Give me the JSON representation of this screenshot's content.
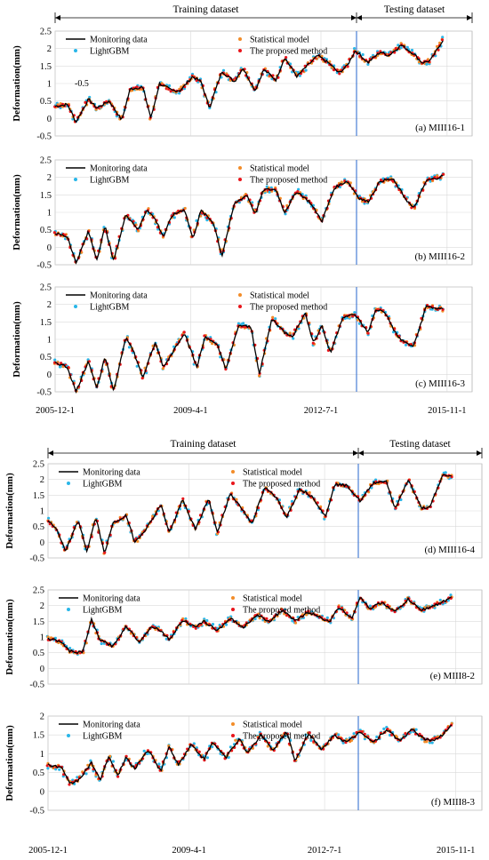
{
  "dataset_labels": {
    "training": "Training dataset",
    "testing": "Testing dataset"
  },
  "legend": {
    "monitoring": "Monitoring data",
    "statistical": "Statistical model",
    "lightgbm": "LightGBM",
    "proposed": "The proposed method"
  },
  "colors": {
    "monitoring": "#000000",
    "statistical": "#f28c28",
    "lightgbm": "#29b6e8",
    "proposed": "#e8151b",
    "split_line": "#4a7fd4",
    "grid": "#d9d9d9"
  },
  "ylabel": "Deformation(mm)",
  "x_tick_labels": [
    "2005-12-1",
    "2009-4-1",
    "2012-7-1",
    "2015-11-1"
  ],
  "chart_data": [
    {
      "type": "line",
      "label": "(a) MIII16-1",
      "ylim": [
        -0.5,
        2.5
      ],
      "yticks": [
        "-0.5",
        "0",
        "0.5",
        "1",
        "1.5",
        "2",
        "2.5"
      ],
      "stray_label": "-0.5",
      "monitoring_key_points": [
        [
          0,
          0.35
        ],
        [
          0.03,
          0.4
        ],
        [
          0.05,
          -0.1
        ],
        [
          0.08,
          0.55
        ],
        [
          0.1,
          0.3
        ],
        [
          0.13,
          0.5
        ],
        [
          0.16,
          -0.05
        ],
        [
          0.18,
          0.85
        ],
        [
          0.21,
          0.9
        ],
        [
          0.23,
          0.0
        ],
        [
          0.25,
          1.0
        ],
        [
          0.28,
          0.8
        ],
        [
          0.3,
          0.8
        ],
        [
          0.33,
          1.2
        ],
        [
          0.35,
          1.05
        ],
        [
          0.37,
          0.3
        ],
        [
          0.4,
          1.35
        ],
        [
          0.43,
          1.05
        ],
        [
          0.45,
          1.45
        ],
        [
          0.48,
          0.8
        ],
        [
          0.5,
          1.4
        ],
        [
          0.53,
          1.1
        ],
        [
          0.55,
          1.75
        ],
        [
          0.58,
          1.2
        ],
        [
          0.6,
          1.45
        ],
        [
          0.63,
          1.8
        ],
        [
          0.66,
          1.55
        ],
        [
          0.68,
          1.3
        ],
        [
          0.7,
          1.5
        ],
        [
          0.72,
          1.95
        ],
        [
          0.75,
          1.6
        ],
        [
          0.78,
          1.9
        ],
        [
          0.8,
          1.8
        ],
        [
          0.83,
          2.1
        ],
        [
          0.86,
          1.85
        ],
        [
          0.88,
          1.6
        ],
        [
          0.9,
          1.65
        ],
        [
          0.93,
          2.25
        ]
      ]
    },
    {
      "type": "line",
      "label": "(b) MIII16-2",
      "ylim": [
        -0.5,
        2.5
      ],
      "yticks": [
        "-0.5",
        "0",
        "0.5",
        "1",
        "1.5",
        "2",
        "2.5"
      ],
      "monitoring_key_points": [
        [
          0,
          0.4
        ],
        [
          0.03,
          0.3
        ],
        [
          0.05,
          -0.45
        ],
        [
          0.08,
          0.45
        ],
        [
          0.1,
          -0.35
        ],
        [
          0.12,
          0.6
        ],
        [
          0.14,
          -0.4
        ],
        [
          0.17,
          0.95
        ],
        [
          0.2,
          0.5
        ],
        [
          0.22,
          1.1
        ],
        [
          0.24,
          0.8
        ],
        [
          0.26,
          0.3
        ],
        [
          0.28,
          0.9
        ],
        [
          0.31,
          1.1
        ],
        [
          0.33,
          0.25
        ],
        [
          0.35,
          1.05
        ],
        [
          0.38,
          0.7
        ],
        [
          0.4,
          -0.25
        ],
        [
          0.43,
          1.25
        ],
        [
          0.46,
          1.5
        ],
        [
          0.48,
          0.95
        ],
        [
          0.5,
          1.65
        ],
        [
          0.53,
          1.65
        ],
        [
          0.55,
          1.0
        ],
        [
          0.58,
          1.6
        ],
        [
          0.61,
          1.3
        ],
        [
          0.64,
          0.75
        ],
        [
          0.67,
          1.7
        ],
        [
          0.7,
          1.9
        ],
        [
          0.73,
          1.4
        ],
        [
          0.75,
          1.3
        ],
        [
          0.78,
          1.9
        ],
        [
          0.81,
          1.95
        ],
        [
          0.84,
          1.4
        ],
        [
          0.86,
          1.1
        ],
        [
          0.89,
          1.9
        ],
        [
          0.92,
          2.0
        ],
        [
          0.93,
          2.05
        ]
      ]
    },
    {
      "type": "line",
      "label": "(c) MIII16-3",
      "ylim": [
        -0.5,
        2.5
      ],
      "yticks": [
        "-0.5",
        "0",
        "0.5",
        "1",
        "1.5",
        "2",
        "2.5"
      ],
      "monitoring_key_points": [
        [
          0,
          0.35
        ],
        [
          0.03,
          0.2
        ],
        [
          0.05,
          -0.5
        ],
        [
          0.08,
          0.4
        ],
        [
          0.1,
          -0.4
        ],
        [
          0.12,
          0.5
        ],
        [
          0.14,
          -0.5
        ],
        [
          0.17,
          1.1
        ],
        [
          0.19,
          0.6
        ],
        [
          0.21,
          -0.1
        ],
        [
          0.24,
          0.9
        ],
        [
          0.26,
          0.2
        ],
        [
          0.28,
          0.6
        ],
        [
          0.31,
          1.2
        ],
        [
          0.34,
          0.2
        ],
        [
          0.36,
          1.1
        ],
        [
          0.39,
          0.8
        ],
        [
          0.41,
          0.15
        ],
        [
          0.44,
          1.4
        ],
        [
          0.47,
          1.35
        ],
        [
          0.49,
          0.0
        ],
        [
          0.52,
          1.6
        ],
        [
          0.55,
          1.2
        ],
        [
          0.57,
          1.1
        ],
        [
          0.6,
          1.75
        ],
        [
          0.62,
          0.9
        ],
        [
          0.64,
          1.4
        ],
        [
          0.66,
          0.6
        ],
        [
          0.69,
          1.65
        ],
        [
          0.72,
          1.7
        ],
        [
          0.75,
          1.2
        ],
        [
          0.77,
          1.85
        ],
        [
          0.79,
          1.8
        ],
        [
          0.82,
          1.1
        ],
        [
          0.84,
          0.9
        ],
        [
          0.86,
          0.8
        ],
        [
          0.89,
          1.95
        ],
        [
          0.93,
          1.85
        ]
      ]
    },
    {
      "type": "line",
      "label": "(d) MIII16-4",
      "ylim": [
        -0.5,
        2.5
      ],
      "yticks": [
        "-0.5",
        "0",
        "0.5",
        "1",
        "1.5",
        "2",
        "2.5"
      ],
      "monitoring_key_points": [
        [
          0,
          0.7
        ],
        [
          0.02,
          0.4
        ],
        [
          0.04,
          -0.3
        ],
        [
          0.07,
          0.7
        ],
        [
          0.09,
          -0.3
        ],
        [
          0.11,
          0.8
        ],
        [
          0.13,
          -0.35
        ],
        [
          0.15,
          0.6
        ],
        [
          0.18,
          0.85
        ],
        [
          0.2,
          0.0
        ],
        [
          0.23,
          0.5
        ],
        [
          0.26,
          1.2
        ],
        [
          0.28,
          0.3
        ],
        [
          0.31,
          1.35
        ],
        [
          0.34,
          0.4
        ],
        [
          0.37,
          1.4
        ],
        [
          0.39,
          0.3
        ],
        [
          0.42,
          1.55
        ],
        [
          0.44,
          1.2
        ],
        [
          0.47,
          0.6
        ],
        [
          0.5,
          1.75
        ],
        [
          0.53,
          1.35
        ],
        [
          0.55,
          0.8
        ],
        [
          0.58,
          1.7
        ],
        [
          0.61,
          1.45
        ],
        [
          0.64,
          0.8
        ],
        [
          0.66,
          1.85
        ],
        [
          0.69,
          1.8
        ],
        [
          0.72,
          1.3
        ],
        [
          0.75,
          1.9
        ],
        [
          0.78,
          1.95
        ],
        [
          0.8,
          1.05
        ],
        [
          0.83,
          2.0
        ],
        [
          0.86,
          1.1
        ],
        [
          0.88,
          1.1
        ],
        [
          0.91,
          2.15
        ],
        [
          0.93,
          2.1
        ]
      ]
    },
    {
      "type": "line",
      "label": "(e) MIII8-2",
      "ylim": [
        -0.5,
        2.5
      ],
      "yticks": [
        "-0.5",
        "0",
        "0.5",
        "1",
        "1.5",
        "2",
        "2.5"
      ],
      "monitoring_key_points": [
        [
          0,
          0.95
        ],
        [
          0.03,
          0.85
        ],
        [
          0.05,
          0.55
        ],
        [
          0.08,
          0.5
        ],
        [
          0.1,
          1.55
        ],
        [
          0.12,
          0.9
        ],
        [
          0.15,
          0.7
        ],
        [
          0.18,
          1.35
        ],
        [
          0.21,
          0.85
        ],
        [
          0.24,
          1.35
        ],
        [
          0.26,
          1.2
        ],
        [
          0.28,
          0.9
        ],
        [
          0.31,
          1.55
        ],
        [
          0.34,
          1.3
        ],
        [
          0.36,
          1.5
        ],
        [
          0.39,
          1.2
        ],
        [
          0.42,
          1.6
        ],
        [
          0.45,
          1.3
        ],
        [
          0.48,
          1.7
        ],
        [
          0.51,
          1.5
        ],
        [
          0.54,
          1.85
        ],
        [
          0.57,
          1.5
        ],
        [
          0.6,
          1.8
        ],
        [
          0.63,
          1.6
        ],
        [
          0.65,
          1.5
        ],
        [
          0.67,
          1.95
        ],
        [
          0.7,
          1.6
        ],
        [
          0.72,
          2.3
        ],
        [
          0.74,
          1.9
        ],
        [
          0.77,
          2.1
        ],
        [
          0.8,
          1.8
        ],
        [
          0.83,
          2.2
        ],
        [
          0.86,
          1.85
        ],
        [
          0.89,
          2.0
        ],
        [
          0.93,
          2.25
        ]
      ]
    },
    {
      "type": "line",
      "label": "(f) MIII8-3",
      "ylim": [
        -0.5,
        2.0
      ],
      "yticks": [
        "-0.5",
        "0",
        "0.5",
        "1",
        "1.5",
        "2"
      ],
      "monitoring_key_points": [
        [
          0,
          0.7
        ],
        [
          0.03,
          0.65
        ],
        [
          0.05,
          0.2
        ],
        [
          0.07,
          0.3
        ],
        [
          0.1,
          0.75
        ],
        [
          0.12,
          0.3
        ],
        [
          0.14,
          0.95
        ],
        [
          0.16,
          0.4
        ],
        [
          0.18,
          0.9
        ],
        [
          0.2,
          0.6
        ],
        [
          0.23,
          1.1
        ],
        [
          0.26,
          0.55
        ],
        [
          0.28,
          1.2
        ],
        [
          0.3,
          0.7
        ],
        [
          0.33,
          1.25
        ],
        [
          0.36,
          0.85
        ],
        [
          0.38,
          1.3
        ],
        [
          0.41,
          0.9
        ],
        [
          0.44,
          1.4
        ],
        [
          0.46,
          1.0
        ],
        [
          0.49,
          1.5
        ],
        [
          0.52,
          1.1
        ],
        [
          0.55,
          1.6
        ],
        [
          0.57,
          0.8
        ],
        [
          0.6,
          1.55
        ],
        [
          0.63,
          1.1
        ],
        [
          0.66,
          1.5
        ],
        [
          0.69,
          1.3
        ],
        [
          0.72,
          1.6
        ],
        [
          0.75,
          1.3
        ],
        [
          0.78,
          1.65
        ],
        [
          0.81,
          1.35
        ],
        [
          0.84,
          1.65
        ],
        [
          0.87,
          1.35
        ],
        [
          0.9,
          1.4
        ],
        [
          0.93,
          1.75
        ]
      ]
    }
  ]
}
